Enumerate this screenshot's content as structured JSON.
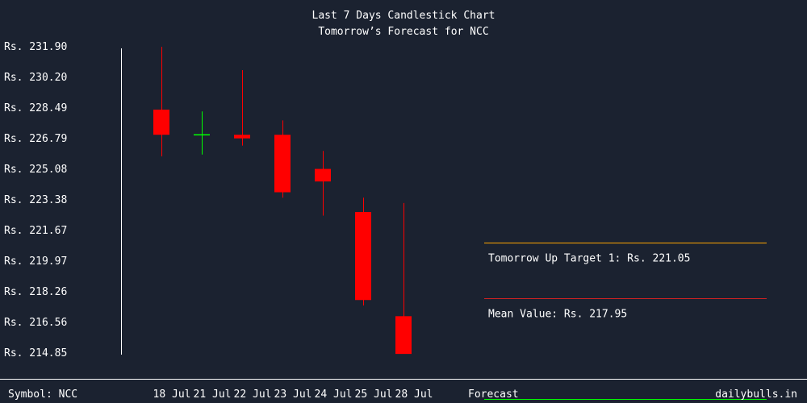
{
  "header": {
    "title": "Last 7 Days Candlestick Chart",
    "subtitle": "Tomorrow’s Forecast for NCC"
  },
  "footer": {
    "symbol": "Symbol: NCC",
    "forecast": "Forecast",
    "site": "dailybulls.in"
  },
  "colors": {
    "background": "#1b2230",
    "bearish": "#ff0000",
    "bullish": "#00ff00",
    "up_target_line": "#ffa500",
    "mean_line": "#cc2222",
    "forecast_underline": "#00ff00",
    "text": "#ffffff"
  },
  "chart_data": {
    "type": "candlestick",
    "title": "Last 7 Days Candlestick Chart",
    "subtitle": "Tomorrow’s Forecast for NCC",
    "y_ticks": [
      "Rs. 231.90",
      "Rs. 230.20",
      "Rs. 228.49",
      "Rs. 226.79",
      "Rs. 225.08",
      "Rs. 223.38",
      "Rs. 221.67",
      "Rs. 219.97",
      "Rs. 218.26",
      "Rs. 216.56",
      "Rs. 214.85"
    ],
    "ylim": [
      214.85,
      231.9
    ],
    "candles": [
      {
        "date": "18 Jul",
        "open": 228.4,
        "high": 231.9,
        "low": 225.8,
        "close": 227.0
      },
      {
        "date": "21 Jul",
        "open": 227.0,
        "high": 228.3,
        "low": 225.9,
        "close": 227.0
      },
      {
        "date": "22 Jul",
        "open": 227.0,
        "high": 230.6,
        "low": 226.4,
        "close": 226.8
      },
      {
        "date": "23 Jul",
        "open": 227.0,
        "high": 227.8,
        "low": 223.5,
        "close": 223.8
      },
      {
        "date": "24 Jul",
        "open": 225.1,
        "high": 226.1,
        "low": 222.5,
        "close": 224.4
      },
      {
        "date": "25 Jul",
        "open": 222.7,
        "high": 223.5,
        "low": 217.5,
        "close": 217.8
      },
      {
        "date": "28 Jul",
        "open": 216.9,
        "high": 223.2,
        "low": 214.85,
        "close": 214.8
      }
    ],
    "targets": [
      {
        "label": "Tomorrow Up Target 1: Rs. 221.05",
        "value": 221.05,
        "color": "#ffa500"
      },
      {
        "label": "Mean Value: Rs. 217.95",
        "value": 217.95,
        "color": "#cc2222"
      }
    ]
  }
}
